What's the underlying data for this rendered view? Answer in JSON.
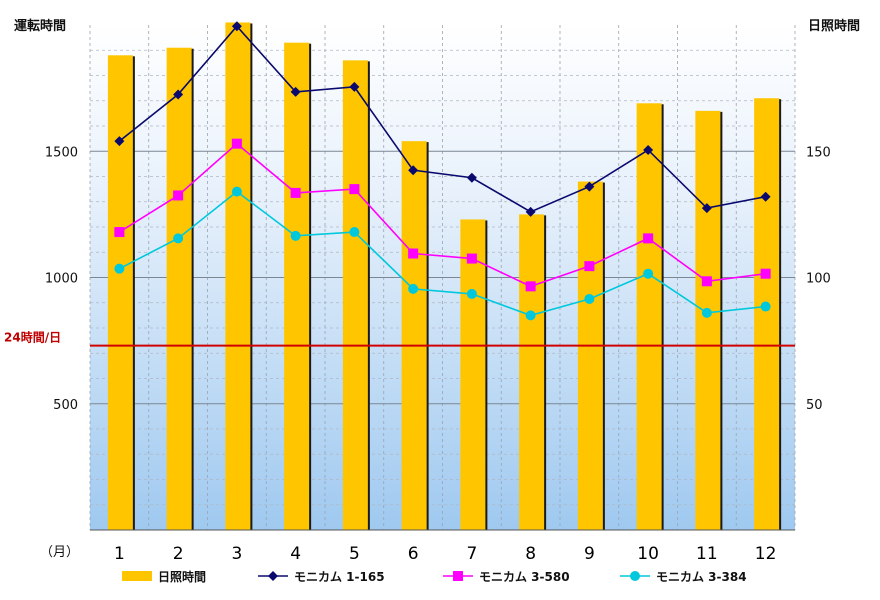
{
  "chart_data": {
    "type": "bar+line",
    "title": "",
    "x_unit_label": "（月）",
    "categories": [
      "1",
      "2",
      "3",
      "4",
      "5",
      "6",
      "7",
      "8",
      "9",
      "10",
      "11",
      "12"
    ],
    "y_left": {
      "label": "運転時間",
      "range": [
        0,
        2000
      ],
      "ticks": [
        500,
        1000,
        1500
      ]
    },
    "y_right": {
      "label": "日照時間",
      "range": [
        0,
        200
      ],
      "ticks": [
        50,
        100,
        150
      ]
    },
    "reference_line": {
      "label": "24時間/日",
      "value": 730,
      "color": "#d00000",
      "axis": "left"
    },
    "series": [
      {
        "name": "日照時間",
        "type": "bar",
        "axis": "right",
        "color": "#FFC600",
        "values": [
          188,
          191,
          201,
          193,
          186,
          154,
          123,
          125,
          138,
          169,
          166,
          171
        ]
      },
      {
        "name": "モニカム 1-165",
        "type": "line",
        "axis": "left",
        "color": "#0A0A6E",
        "marker": "diamond",
        "values": [
          1540,
          1725,
          1995,
          1735,
          1755,
          1425,
          1395,
          1260,
          1360,
          1505,
          1275,
          1320
        ]
      },
      {
        "name": "モニカム 3-580",
        "type": "line",
        "axis": "left",
        "color": "#FF00FF",
        "marker": "square",
        "values": [
          1180,
          1325,
          1530,
          1335,
          1350,
          1095,
          1075,
          965,
          1045,
          1155,
          985,
          1015
        ]
      },
      {
        "name": "モニカム 3-384",
        "type": "line",
        "axis": "left",
        "color": "#00C8DC",
        "marker": "circle",
        "values": [
          1035,
          1155,
          1340,
          1165,
          1180,
          955,
          935,
          850,
          915,
          1015,
          860,
          885
        ]
      }
    ],
    "grid": "vertical-and-horizontal-dashed",
    "legend_position": "bottom"
  }
}
